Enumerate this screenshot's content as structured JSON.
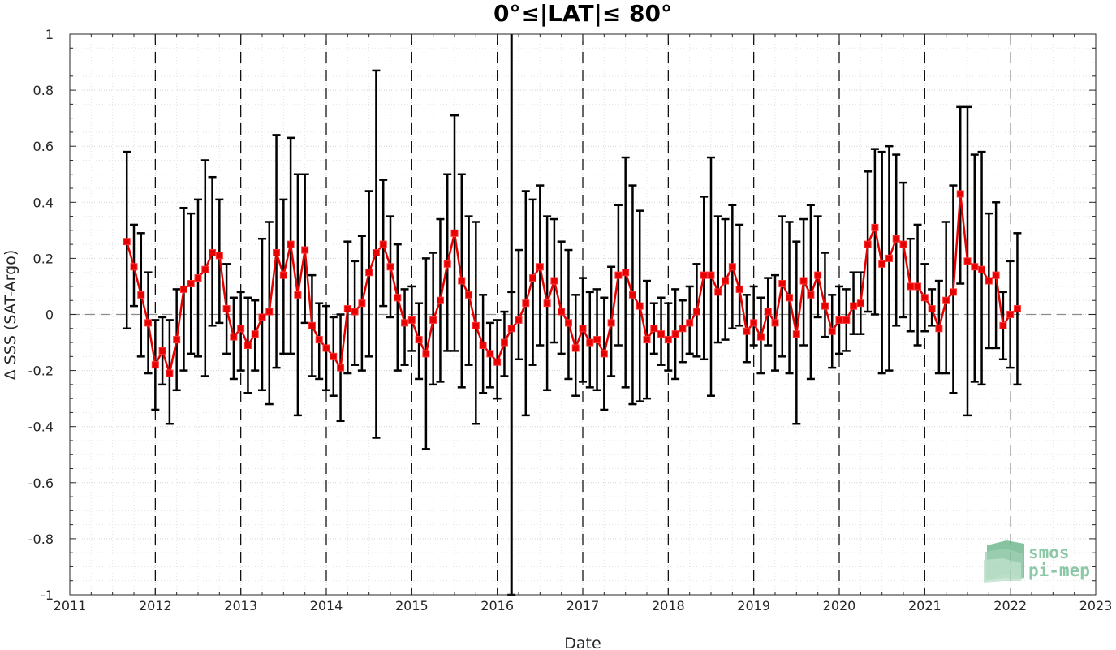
{
  "chart_data": {
    "type": "line",
    "title": "0°≤|LAT|≤ 80°",
    "xlabel": "Date",
    "ylabel": "Δ SSS (SAT-Argo)",
    "xlim": [
      2011,
      2023
    ],
    "ylim": [
      -1,
      1
    ],
    "x_ticks": [
      "2011",
      "2012",
      "2013",
      "2014",
      "2015",
      "2016",
      "2017",
      "2018",
      "2019",
      "2020",
      "2021",
      "2022",
      "2023"
    ],
    "y_ticks": [
      "-1",
      "-0.8",
      "-0.6",
      "-0.4",
      "-0.2",
      "0",
      "0.2",
      "0.4",
      "0.6",
      "0.8",
      "1"
    ],
    "grid": true,
    "reference_line": 0,
    "vertical_marker": "2016-03",
    "series": [
      {
        "color": "#e60000",
        "x": [
          "2011-09",
          "2011-10",
          "2011-11",
          "2011-12",
          "2012-01",
          "2012-02",
          "2012-03",
          "2012-04",
          "2012-05",
          "2012-06",
          "2012-07",
          "2012-08",
          "2012-09",
          "2012-10",
          "2012-11",
          "2012-12",
          "2013-01",
          "2013-02",
          "2013-03",
          "2013-04",
          "2013-05",
          "2013-06",
          "2013-07",
          "2013-08",
          "2013-09",
          "2013-10",
          "2013-11",
          "2013-12",
          "2014-01",
          "2014-02",
          "2014-03",
          "2014-04",
          "2014-05",
          "2014-06",
          "2014-07",
          "2014-08",
          "2014-09",
          "2014-10",
          "2014-11",
          "2014-12",
          "2015-01",
          "2015-02",
          "2015-03",
          "2015-04",
          "2015-05",
          "2015-06",
          "2015-07",
          "2015-08",
          "2015-09",
          "2015-10",
          "2015-11",
          "2015-12",
          "2016-01",
          "2016-02",
          "2016-03",
          "2016-04",
          "2016-05",
          "2016-06",
          "2016-07",
          "2016-08",
          "2016-09",
          "2016-10",
          "2016-11",
          "2016-12",
          "2017-01",
          "2017-02",
          "2017-03",
          "2017-04",
          "2017-05",
          "2017-06",
          "2017-07",
          "2017-08",
          "2017-09",
          "2017-10",
          "2017-11",
          "2017-12",
          "2018-01",
          "2018-02",
          "2018-03",
          "2018-04",
          "2018-05",
          "2018-06",
          "2018-07",
          "2018-08",
          "2018-09",
          "2018-10",
          "2018-11",
          "2018-12",
          "2019-01",
          "2019-02",
          "2019-03",
          "2019-04",
          "2019-05",
          "2019-06",
          "2019-07",
          "2019-08",
          "2019-09",
          "2019-10",
          "2019-11",
          "2019-12",
          "2020-01",
          "2020-02",
          "2020-03",
          "2020-04",
          "2020-05",
          "2020-06",
          "2020-07",
          "2020-08",
          "2020-09",
          "2020-10",
          "2020-11",
          "2020-12",
          "2021-01",
          "2021-02",
          "2021-03",
          "2021-04",
          "2021-05",
          "2021-06",
          "2021-07",
          "2021-08",
          "2021-09",
          "2021-10",
          "2021-11",
          "2021-12",
          "2022-01",
          "2022-02"
        ],
        "values": [
          0.26,
          0.17,
          0.07,
          -0.03,
          -0.18,
          -0.13,
          -0.21,
          -0.09,
          0.09,
          0.11,
          0.13,
          0.16,
          0.22,
          0.21,
          0.02,
          -0.08,
          -0.05,
          -0.11,
          -0.07,
          -0.01,
          0.01,
          0.22,
          0.14,
          0.25,
          0.07,
          0.23,
          -0.04,
          -0.09,
          -0.12,
          -0.15,
          -0.19,
          0.02,
          0.01,
          0.04,
          0.15,
          0.22,
          0.25,
          0.17,
          0.06,
          -0.03,
          -0.02,
          -0.09,
          -0.14,
          -0.02,
          0.05,
          0.18,
          0.29,
          0.12,
          0.07,
          -0.04,
          -0.11,
          -0.14,
          -0.17,
          -0.1,
          -0.05,
          -0.02,
          0.04,
          0.13,
          0.17,
          0.04,
          0.12,
          0.01,
          -0.03,
          -0.12,
          -0.05,
          -0.1,
          -0.09,
          -0.14,
          -0.03,
          0.14,
          0.15,
          0.07,
          0.03,
          -0.09,
          -0.05,
          -0.07,
          -0.09,
          -0.07,
          -0.05,
          -0.03,
          0.01,
          0.14,
          0.14,
          0.08,
          0.12,
          0.17,
          0.09,
          -0.06,
          -0.03,
          -0.08,
          0.01,
          -0.03,
          0.11,
          0.06,
          -0.07,
          0.12,
          0.07,
          0.14,
          0.03,
          -0.06,
          -0.02,
          -0.02,
          0.03,
          0.04,
          0.25,
          0.31,
          0.18,
          0.2,
          0.27,
          0.25,
          0.1,
          0.1,
          0.06,
          0.02,
          -0.05,
          0.05,
          0.08,
          0.43,
          0.19,
          0.17,
          0.16,
          0.12,
          0.14,
          -0.04,
          0.0,
          0.02
        ],
        "err_low": [
          -0.05,
          0.03,
          -0.15,
          -0.21,
          -0.34,
          -0.25,
          -0.39,
          -0.27,
          -0.2,
          -0.14,
          -0.15,
          -0.22,
          -0.04,
          -0.03,
          -0.14,
          -0.23,
          -0.2,
          -0.28,
          -0.2,
          -0.27,
          -0.32,
          -0.19,
          -0.14,
          -0.14,
          -0.36,
          -0.03,
          -0.22,
          -0.23,
          -0.27,
          -0.29,
          -0.38,
          -0.21,
          -0.18,
          -0.2,
          -0.15,
          -0.44,
          0.03,
          -0.01,
          -0.2,
          -0.18,
          -0.13,
          -0.23,
          -0.48,
          -0.25,
          -0.24,
          -0.13,
          -0.13,
          -0.26,
          -0.18,
          -0.39,
          -0.28,
          -0.26,
          -0.3,
          -0.22,
          -1.0,
          -0.16,
          -0.36,
          -0.18,
          -0.11,
          -0.27,
          -0.1,
          -0.14,
          -0.23,
          -0.29,
          -0.24,
          -0.26,
          -0.27,
          -0.34,
          -0.22,
          -0.11,
          -0.26,
          -0.32,
          -0.31,
          -0.3,
          -0.14,
          -0.18,
          -0.2,
          -0.23,
          -0.17,
          -0.14,
          -0.15,
          -0.16,
          -0.29,
          -0.1,
          -0.09,
          -0.05,
          -0.04,
          -0.17,
          -0.11,
          -0.21,
          -0.11,
          -0.2,
          -0.15,
          -0.21,
          -0.39,
          -0.11,
          -0.23,
          -0.01,
          -0.08,
          -0.19,
          -0.14,
          -0.13,
          -0.07,
          -0.07,
          0.01,
          0.0,
          -0.21,
          -0.2,
          -0.04,
          -0.01,
          -0.06,
          -0.11,
          -0.06,
          -0.04,
          -0.21,
          -0.21,
          -0.28,
          0.11,
          -0.36,
          -0.24,
          -0.25,
          -0.12,
          -0.12,
          -0.16,
          -0.19,
          -0.25
        ],
        "err_high": [
          0.58,
          0.32,
          0.29,
          0.15,
          -0.02,
          -0.01,
          -0.02,
          0.09,
          0.38,
          0.36,
          0.41,
          0.55,
          0.49,
          0.41,
          0.18,
          0.06,
          0.08,
          0.06,
          0.05,
          0.27,
          0.33,
          0.64,
          0.41,
          0.63,
          0.5,
          0.5,
          0.14,
          0.04,
          0.03,
          -0.01,
          0.0,
          0.26,
          0.19,
          0.28,
          0.44,
          0.87,
          0.48,
          0.35,
          0.25,
          0.09,
          0.1,
          0.04,
          0.2,
          0.22,
          0.34,
          0.5,
          0.71,
          0.5,
          0.35,
          0.33,
          0.07,
          -0.03,
          -0.02,
          0.01,
          0.08,
          0.23,
          0.44,
          0.41,
          0.46,
          0.35,
          0.34,
          0.26,
          0.23,
          0.07,
          0.13,
          0.08,
          0.09,
          0.06,
          0.17,
          0.39,
          0.56,
          0.46,
          0.37,
          0.12,
          0.04,
          0.06,
          0.04,
          0.09,
          0.05,
          0.1,
          0.18,
          0.42,
          0.56,
          0.35,
          0.34,
          0.39,
          0.32,
          0.07,
          0.1,
          0.06,
          0.13,
          0.14,
          0.35,
          0.33,
          0.26,
          0.34,
          0.39,
          0.35,
          0.22,
          0.07,
          0.1,
          0.09,
          0.15,
          0.15,
          0.51,
          0.59,
          0.58,
          0.6,
          0.57,
          0.47,
          0.27,
          0.32,
          0.18,
          0.09,
          0.12,
          0.33,
          0.46,
          0.74,
          0.74,
          0.57,
          0.58,
          0.36,
          0.4,
          0.08,
          0.19,
          0.29
        ]
      }
    ]
  },
  "logo": {
    "line1": "smos",
    "line2": "pi-mep",
    "color": "#8cc7a6"
  }
}
